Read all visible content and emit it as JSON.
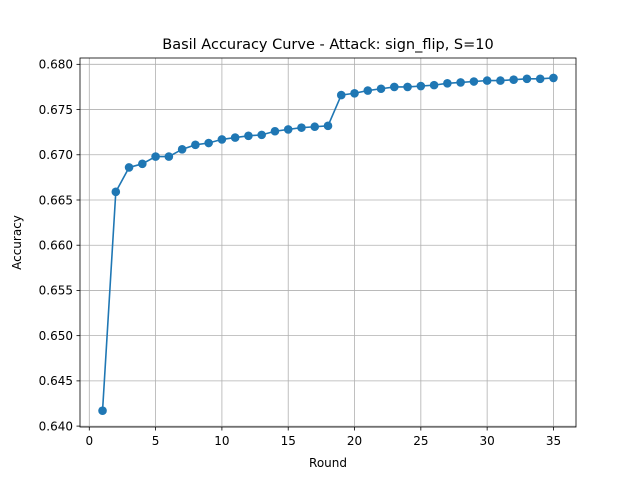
{
  "chart_data": {
    "type": "line",
    "title": "Basil Accuracy Curve - Attack: sign_flip, S=10",
    "xlabel": "Round",
    "ylabel": "Accuracy",
    "xlim": [
      -0.7,
      36.7
    ],
    "ylim": [
      0.6399,
      0.6807
    ],
    "xticks": [
      0,
      5,
      10,
      15,
      20,
      25,
      30,
      35
    ],
    "xtick_labels": [
      "0",
      "5",
      "10",
      "15",
      "20",
      "25",
      "30",
      "35"
    ],
    "yticks": [
      0.64,
      0.645,
      0.65,
      0.655,
      0.66,
      0.665,
      0.67,
      0.675,
      0.68
    ],
    "ytick_labels": [
      "0.640",
      "0.645",
      "0.650",
      "0.655",
      "0.660",
      "0.665",
      "0.670",
      "0.675",
      "0.680"
    ],
    "grid": true,
    "color": "#1f77b4",
    "marker": "circle",
    "x": [
      1,
      2,
      3,
      4,
      5,
      6,
      7,
      8,
      9,
      10,
      11,
      12,
      13,
      14,
      15,
      16,
      17,
      18,
      19,
      20,
      21,
      22,
      23,
      24,
      25,
      26,
      27,
      28,
      29,
      30,
      31,
      32,
      33,
      34,
      35
    ],
    "values": [
      0.6417,
      0.6659,
      0.6686,
      0.669,
      0.6698,
      0.6698,
      0.6706,
      0.6711,
      0.6713,
      0.6717,
      0.6719,
      0.6721,
      0.6722,
      0.6726,
      0.6728,
      0.673,
      0.6731,
      0.6732,
      0.6766,
      0.6768,
      0.6771,
      0.6773,
      0.6775,
      0.6775,
      0.6776,
      0.6777,
      0.6779,
      0.678,
      0.6781,
      0.6782,
      0.6782,
      0.6783,
      0.6784,
      0.6784,
      0.6785
    ]
  }
}
